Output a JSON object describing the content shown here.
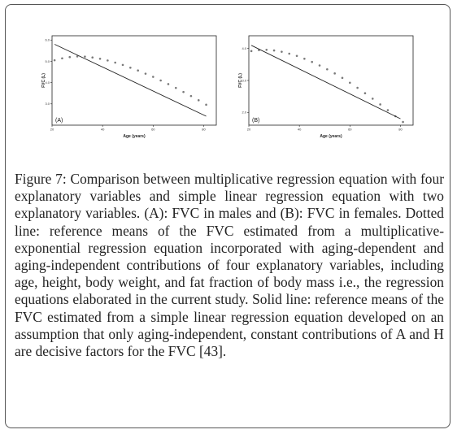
{
  "chart_data": [
    {
      "type": "line",
      "panel_label": "(A)",
      "xlabel": "Age (years)",
      "ylabel": "FVC (L)",
      "xlim": [
        20,
        85
      ],
      "ylim": [
        2.0,
        6.2
      ],
      "x_ticks": [
        "20",
        "40",
        "60",
        "80"
      ],
      "y_ticks": [
        "3.0",
        "4.0",
        "5.0",
        "6.0"
      ],
      "series": [
        {
          "style": "dotted",
          "x": [
            21,
            24,
            27,
            30,
            33,
            36,
            39,
            42,
            45,
            48,
            51,
            54,
            57,
            60,
            63,
            66,
            69,
            72,
            75,
            78,
            81
          ],
          "y": [
            5.05,
            5.14,
            5.2,
            5.23,
            5.22,
            5.18,
            5.12,
            5.04,
            4.94,
            4.83,
            4.7,
            4.57,
            4.42,
            4.27,
            4.1,
            3.93,
            3.75,
            3.56,
            3.37,
            3.17,
            2.96
          ]
        },
        {
          "style": "solid",
          "x": [
            21,
            81
          ],
          "y": [
            5.8,
            2.42
          ]
        }
      ]
    },
    {
      "type": "line",
      "panel_label": "(B)",
      "xlabel": "Age (years)",
      "ylabel": "FVC (L)",
      "xlim": [
        20,
        85
      ],
      "ylim": [
        1.6,
        4.4
      ],
      "x_ticks": [
        "20",
        "40",
        "60",
        "80"
      ],
      "y_ticks": [
        "2.0",
        "3.0",
        "4.0"
      ],
      "series": [
        {
          "style": "dotted",
          "x": [
            21,
            24,
            27,
            30,
            33,
            36,
            39,
            42,
            45,
            48,
            51,
            54,
            57,
            60,
            63,
            66,
            69,
            72,
            75,
            78,
            81
          ],
          "y": [
            3.92,
            3.95,
            3.96,
            3.94,
            3.9,
            3.84,
            3.77,
            3.68,
            3.58,
            3.47,
            3.35,
            3.22,
            3.08,
            2.93,
            2.77,
            2.6,
            2.43,
            2.25,
            2.07,
            1.88,
            1.7
          ]
        },
        {
          "style": "solid",
          "x": [
            21,
            80
          ],
          "y": [
            4.1,
            1.8
          ]
        }
      ]
    }
  ],
  "caption": {
    "label": "Figure 7:",
    "text": " Comparison between multiplicative regression equation with four explanatory variables and simple linear regression equation with two explanatory variables. (A): FVC in males and (B): FVC in females. Dotted line: reference means of the FVC estimated from a multiplicative-exponential regression equation incorporated with aging-dependent and aging-independent contributions of four explanatory variables, including age, height, body weight, and fat fraction of body mass i.e., the regression equations elaborated in the current study. Solid line: reference means of the FVC estimated from a simple linear regression equation developed on an assumption that only aging-independent, constant contributions of A and H are decisive factors for the FVC [43]."
  }
}
